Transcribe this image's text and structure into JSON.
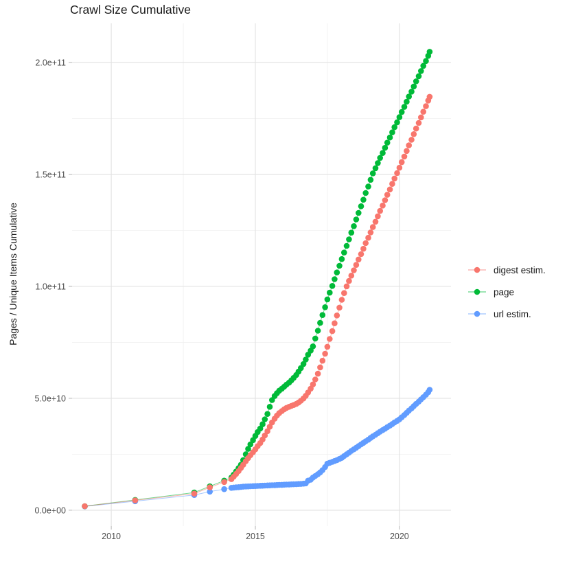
{
  "chart": {
    "title": "Crawl Size Cumulative",
    "y_axis_title": "Pages / Unique Items Cumulative"
  },
  "chart_data": {
    "type": "scatter",
    "title": "Crawl Size Cumulative",
    "xlabel": "",
    "ylabel": "Pages / Unique Items Cumulative",
    "legend_position": "right",
    "grid": {
      "major_color": "#e3e3e3",
      "minor_color": "#f0f0f0"
    },
    "axis_text_color": "#4d4d4d",
    "tick_color": "#b3b3b3",
    "y_unit_note": "point y-values are billions (1e9) of pages/items",
    "x_domain": [
      2008.64,
      2021.79
    ],
    "y_domain": [
      -7.1,
      217.5
    ],
    "x_major_ticks": [
      {
        "value": 2010,
        "label": "2010"
      },
      {
        "value": 2015,
        "label": "2015"
      },
      {
        "value": 2020,
        "label": "2020"
      }
    ],
    "x_minor_ticks": [
      2012.5,
      2017.5
    ],
    "y_major_ticks": [
      {
        "value": 0,
        "label": "0.0e+00"
      },
      {
        "value": 50,
        "label": "5.0e+10"
      },
      {
        "value": 100,
        "label": "1.0e+11"
      },
      {
        "value": 150,
        "label": "1.5e+11"
      },
      {
        "value": 200,
        "label": "2.0e+11"
      }
    ],
    "y_minor_ticks": [
      25,
      75,
      125,
      175
    ],
    "series": [
      {
        "name": "digest estim.",
        "color": "#F8766D",
        "points": [
          [
            2009.08,
            1.8
          ],
          [
            2010.83,
            4.4
          ],
          [
            2012.88,
            7.4
          ],
          [
            2013.42,
            10.2
          ],
          [
            2013.92,
            12.6
          ],
          [
            2014.17,
            13.9
          ],
          [
            2014.25,
            15.0
          ],
          [
            2014.33,
            16.2
          ],
          [
            2014.42,
            17.5
          ],
          [
            2014.5,
            18.9
          ],
          [
            2014.58,
            20.3
          ],
          [
            2014.67,
            21.9
          ],
          [
            2014.75,
            23.3
          ],
          [
            2014.83,
            24.6
          ],
          [
            2014.92,
            25.9
          ],
          [
            2015.0,
            27.2
          ],
          [
            2015.08,
            28.6
          ],
          [
            2015.17,
            30.0
          ],
          [
            2015.25,
            31.6
          ],
          [
            2015.33,
            33.4
          ],
          [
            2015.42,
            35.3
          ],
          [
            2015.5,
            37.3
          ],
          [
            2015.58,
            39.2
          ],
          [
            2015.67,
            40.9
          ],
          [
            2015.75,
            42.3
          ],
          [
            2015.83,
            43.4
          ],
          [
            2015.92,
            44.3
          ],
          [
            2016.0,
            45.1
          ],
          [
            2016.08,
            45.7
          ],
          [
            2016.17,
            46.2
          ],
          [
            2016.25,
            46.6
          ],
          [
            2016.33,
            47.0
          ],
          [
            2016.42,
            47.5
          ],
          [
            2016.5,
            48.1
          ],
          [
            2016.58,
            48.9
          ],
          [
            2016.67,
            49.9
          ],
          [
            2016.75,
            51.1
          ],
          [
            2016.83,
            52.6
          ],
          [
            2016.92,
            54.3
          ],
          [
            2017.0,
            56.2
          ],
          [
            2017.08,
            58.4
          ],
          [
            2017.17,
            61.0
          ],
          [
            2017.25,
            63.8
          ],
          [
            2017.33,
            66.8
          ],
          [
            2017.42,
            69.9
          ],
          [
            2017.5,
            73.0
          ],
          [
            2017.58,
            76.5
          ],
          [
            2017.67,
            80.0
          ],
          [
            2017.75,
            83.5
          ],
          [
            2017.83,
            87.0
          ],
          [
            2017.92,
            90.5
          ],
          [
            2018.0,
            94.0
          ],
          [
            2018.08,
            97.0
          ],
          [
            2018.17,
            100.0
          ],
          [
            2018.25,
            102.4
          ],
          [
            2018.33,
            104.8
          ],
          [
            2018.42,
            107.2
          ],
          [
            2018.5,
            109.6
          ],
          [
            2018.58,
            112.0
          ],
          [
            2018.67,
            114.4
          ],
          [
            2018.75,
            116.8
          ],
          [
            2018.83,
            119.3
          ],
          [
            2018.92,
            121.7
          ],
          [
            2019.0,
            124.1
          ],
          [
            2019.08,
            126.5
          ],
          [
            2019.17,
            128.9
          ],
          [
            2019.25,
            131.3
          ],
          [
            2019.33,
            133.7
          ],
          [
            2019.42,
            136.1
          ],
          [
            2019.5,
            138.5
          ],
          [
            2019.58,
            140.9
          ],
          [
            2019.67,
            143.3
          ],
          [
            2019.75,
            145.8
          ],
          [
            2019.83,
            148.2
          ],
          [
            2019.92,
            150.6
          ],
          [
            2020.0,
            153.0
          ],
          [
            2020.08,
            155.5
          ],
          [
            2020.17,
            158.0
          ],
          [
            2020.25,
            160.5
          ],
          [
            2020.33,
            163.0
          ],
          [
            2020.42,
            165.5
          ],
          [
            2020.5,
            168.0
          ],
          [
            2020.58,
            170.5
          ],
          [
            2020.67,
            173.0
          ],
          [
            2020.75,
            175.5
          ],
          [
            2020.83,
            178.0
          ],
          [
            2020.92,
            180.5
          ],
          [
            2021.0,
            183.0
          ],
          [
            2021.05,
            184.7
          ]
        ]
      },
      {
        "name": "page",
        "color": "#00BA38",
        "points": [
          [
            2009.08,
            1.8
          ],
          [
            2010.83,
            4.6
          ],
          [
            2012.88,
            7.9
          ],
          [
            2013.42,
            10.7
          ],
          [
            2013.92,
            13.2
          ],
          [
            2014.17,
            14.6
          ],
          [
            2014.25,
            15.9
          ],
          [
            2014.33,
            17.3
          ],
          [
            2014.42,
            18.8
          ],
          [
            2014.5,
            20.3
          ],
          [
            2014.58,
            22.4
          ],
          [
            2014.67,
            25.0
          ],
          [
            2014.75,
            27.4
          ],
          [
            2014.83,
            29.4
          ],
          [
            2014.92,
            31.3
          ],
          [
            2015.0,
            33.2
          ],
          [
            2015.08,
            34.9
          ],
          [
            2015.17,
            36.5
          ],
          [
            2015.25,
            38.4
          ],
          [
            2015.33,
            40.6
          ],
          [
            2015.42,
            43.0
          ],
          [
            2015.5,
            46.2
          ],
          [
            2015.58,
            49.2
          ],
          [
            2015.67,
            51.0
          ],
          [
            2015.75,
            52.3
          ],
          [
            2015.83,
            53.4
          ],
          [
            2015.92,
            54.3
          ],
          [
            2016.0,
            55.2
          ],
          [
            2016.08,
            56.1
          ],
          [
            2016.17,
            57.0
          ],
          [
            2016.25,
            58.0
          ],
          [
            2016.33,
            59.1
          ],
          [
            2016.42,
            60.4
          ],
          [
            2016.5,
            61.9
          ],
          [
            2016.58,
            63.5
          ],
          [
            2016.67,
            65.3
          ],
          [
            2016.75,
            67.3
          ],
          [
            2016.83,
            69.5
          ],
          [
            2016.92,
            71.3
          ],
          [
            2017.0,
            73.2
          ],
          [
            2017.08,
            76.7
          ],
          [
            2017.17,
            80.2
          ],
          [
            2017.25,
            83.7
          ],
          [
            2017.33,
            87.2
          ],
          [
            2017.42,
            90.7
          ],
          [
            2017.5,
            94.2
          ],
          [
            2017.58,
            97.2
          ],
          [
            2017.67,
            100.2
          ],
          [
            2017.75,
            103.2
          ],
          [
            2017.83,
            106.2
          ],
          [
            2017.92,
            109.2
          ],
          [
            2018.0,
            112.2
          ],
          [
            2018.08,
            115.1
          ],
          [
            2018.17,
            118.1
          ],
          [
            2018.25,
            121.0
          ],
          [
            2018.33,
            124.0
          ],
          [
            2018.42,
            126.9
          ],
          [
            2018.5,
            129.9
          ],
          [
            2018.58,
            132.8
          ],
          [
            2018.67,
            135.8
          ],
          [
            2018.75,
            138.7
          ],
          [
            2018.83,
            141.7
          ],
          [
            2018.92,
            144.6
          ],
          [
            2019.0,
            147.6
          ],
          [
            2019.08,
            150.5
          ],
          [
            2019.17,
            152.8
          ],
          [
            2019.25,
            155.1
          ],
          [
            2019.33,
            157.4
          ],
          [
            2019.42,
            159.6
          ],
          [
            2019.5,
            161.9
          ],
          [
            2019.58,
            164.2
          ],
          [
            2019.67,
            166.5
          ],
          [
            2019.75,
            168.8
          ],
          [
            2019.83,
            171.1
          ],
          [
            2019.92,
            173.3
          ],
          [
            2020.0,
            175.6
          ],
          [
            2020.08,
            177.9
          ],
          [
            2020.17,
            180.2
          ],
          [
            2020.25,
            182.5
          ],
          [
            2020.33,
            184.8
          ],
          [
            2020.42,
            187.0
          ],
          [
            2020.5,
            189.3
          ],
          [
            2020.58,
            191.6
          ],
          [
            2020.67,
            193.9
          ],
          [
            2020.75,
            196.2
          ],
          [
            2020.83,
            198.5
          ],
          [
            2020.92,
            200.7
          ],
          [
            2021.0,
            203.0
          ],
          [
            2021.05,
            204.8
          ]
        ]
      },
      {
        "name": "url estim.",
        "color": "#619CFF",
        "points": [
          [
            2009.08,
            1.7
          ],
          [
            2010.83,
            4.0
          ],
          [
            2012.88,
            6.8
          ],
          [
            2013.42,
            8.3
          ],
          [
            2013.92,
            9.4
          ],
          [
            2014.17,
            10.0
          ],
          [
            2014.25,
            10.1
          ],
          [
            2014.33,
            10.2
          ],
          [
            2014.42,
            10.3
          ],
          [
            2014.5,
            10.4
          ],
          [
            2014.58,
            10.5
          ],
          [
            2014.67,
            10.6
          ],
          [
            2014.75,
            10.65
          ],
          [
            2014.83,
            10.7
          ],
          [
            2014.92,
            10.75
          ],
          [
            2015.0,
            10.8
          ],
          [
            2015.08,
            10.85
          ],
          [
            2015.17,
            10.9
          ],
          [
            2015.25,
            10.95
          ],
          [
            2015.33,
            11.0
          ],
          [
            2015.42,
            11.05
          ],
          [
            2015.5,
            11.1
          ],
          [
            2015.58,
            11.15
          ],
          [
            2015.67,
            11.2
          ],
          [
            2015.75,
            11.25
          ],
          [
            2015.83,
            11.3
          ],
          [
            2015.92,
            11.35
          ],
          [
            2016.0,
            11.4
          ],
          [
            2016.08,
            11.45
          ],
          [
            2016.17,
            11.5
          ],
          [
            2016.25,
            11.55
          ],
          [
            2016.33,
            11.6
          ],
          [
            2016.42,
            11.65
          ],
          [
            2016.5,
            11.7
          ],
          [
            2016.58,
            11.75
          ],
          [
            2016.67,
            11.85
          ],
          [
            2016.75,
            12.0
          ],
          [
            2016.83,
            13.2
          ],
          [
            2016.92,
            13.6
          ],
          [
            2017.0,
            14.6
          ],
          [
            2017.08,
            15.3
          ],
          [
            2017.17,
            16.1
          ],
          [
            2017.25,
            16.9
          ],
          [
            2017.33,
            17.9
          ],
          [
            2017.42,
            19.3
          ],
          [
            2017.5,
            20.8
          ],
          [
            2017.58,
            21.2
          ],
          [
            2017.67,
            21.6
          ],
          [
            2017.75,
            22.0
          ],
          [
            2017.83,
            22.4
          ],
          [
            2017.92,
            22.9
          ],
          [
            2018.0,
            23.4
          ],
          [
            2018.08,
            24.2
          ],
          [
            2018.17,
            25.0
          ],
          [
            2018.25,
            25.7
          ],
          [
            2018.33,
            26.5
          ],
          [
            2018.42,
            27.2
          ],
          [
            2018.5,
            27.9
          ],
          [
            2018.58,
            28.6
          ],
          [
            2018.67,
            29.4
          ],
          [
            2018.75,
            30.1
          ],
          [
            2018.83,
            30.8
          ],
          [
            2018.92,
            31.5
          ],
          [
            2019.0,
            32.3
          ],
          [
            2019.08,
            33.0
          ],
          [
            2019.17,
            33.7
          ],
          [
            2019.25,
            34.4
          ],
          [
            2019.33,
            35.1
          ],
          [
            2019.42,
            35.8
          ],
          [
            2019.5,
            36.4
          ],
          [
            2019.58,
            37.1
          ],
          [
            2019.67,
            37.8
          ],
          [
            2019.75,
            38.5
          ],
          [
            2019.83,
            39.2
          ],
          [
            2019.92,
            39.9
          ],
          [
            2020.0,
            40.6
          ],
          [
            2020.08,
            41.5
          ],
          [
            2020.17,
            42.5
          ],
          [
            2020.25,
            43.5
          ],
          [
            2020.33,
            44.5
          ],
          [
            2020.42,
            45.5
          ],
          [
            2020.5,
            46.5
          ],
          [
            2020.58,
            47.5
          ],
          [
            2020.67,
            48.5
          ],
          [
            2020.75,
            49.5
          ],
          [
            2020.83,
            50.5
          ],
          [
            2020.92,
            51.6
          ],
          [
            2021.0,
            52.7
          ],
          [
            2021.05,
            53.8
          ]
        ]
      }
    ]
  }
}
